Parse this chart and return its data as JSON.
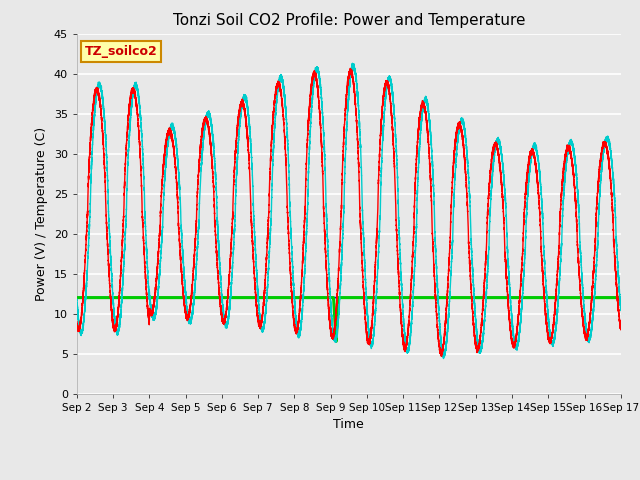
{
  "title": "Tonzi Soil CO2 Profile: Power and Temperature",
  "xlabel": "Time",
  "ylabel": "Power (V) / Temperature (C)",
  "ylim": [
    0,
    45
  ],
  "yticks": [
    0,
    5,
    10,
    15,
    20,
    25,
    30,
    35,
    40,
    45
  ],
  "xtick_labels": [
    "Sep 2",
    "Sep 3",
    "Sep 4",
    "Sep 5",
    "Sep 6",
    "Sep 7",
    "Sep 8",
    "Sep 9",
    "Sep 10",
    "Sep 11",
    "Sep 12",
    "Sep 13",
    "Sep 14",
    "Sep 15",
    "Sep 16",
    "Sep 17"
  ],
  "background_color": "#e8e8e8",
  "grid_color": "#ffffff",
  "annotation_text": "TZ_soilco2",
  "annotation_bg": "#ffffaa",
  "annotation_border": "#cc8800",
  "cr23x_voltage_value": 12.0,
  "cr10x_voltage_value": 12.0,
  "cr23x_temp_color": "#ff0000",
  "cr23x_volt_color": "#0000cc",
  "cr10x_volt_color": "#00cc00",
  "cr10x_temp_color": "#00cccc",
  "fig_width": 6.4,
  "fig_height": 4.8,
  "dpi": 100
}
